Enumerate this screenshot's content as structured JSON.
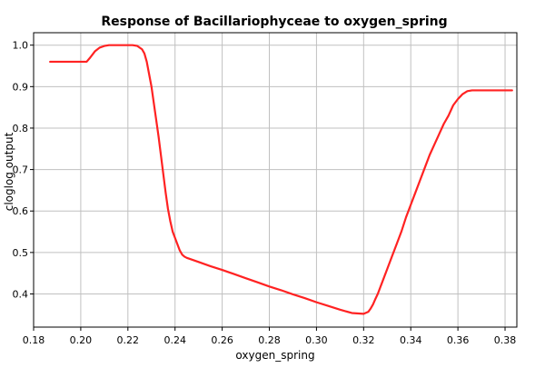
{
  "chart_data": {
    "type": "line",
    "title": "Response of Bacillariophyceae to oxygen_spring",
    "xlabel": "oxygen_spring",
    "ylabel": "cloglog output",
    "xlim": [
      0.18,
      0.385
    ],
    "ylim": [
      0.32,
      1.03
    ],
    "xticks": [
      "0.18",
      "0.20",
      "0.22",
      "0.24",
      "0.26",
      "0.28",
      "0.30",
      "0.32",
      "0.34",
      "0.36",
      "0.38"
    ],
    "yticks": [
      "0.4",
      "0.5",
      "0.6",
      "0.7",
      "0.8",
      "0.9",
      "1.0"
    ],
    "grid": true,
    "series": [
      {
        "color": "#ff2222",
        "x": [
          0.187,
          0.192,
          0.197,
          0.2025,
          0.204,
          0.206,
          0.208,
          0.21,
          0.212,
          0.214,
          0.216,
          0.218,
          0.22,
          0.222,
          0.224,
          0.226,
          0.227,
          0.228,
          0.229,
          0.23,
          0.231,
          0.232,
          0.233,
          0.234,
          0.235,
          0.236,
          0.237,
          0.238,
          0.239,
          0.24,
          0.241,
          0.242,
          0.243,
          0.244,
          0.245,
          0.246,
          0.25,
          0.255,
          0.26,
          0.265,
          0.27,
          0.275,
          0.28,
          0.285,
          0.29,
          0.295,
          0.3,
          0.305,
          0.31,
          0.315,
          0.32,
          0.322,
          0.323,
          0.324,
          0.325,
          0.326,
          0.327,
          0.328,
          0.33,
          0.332,
          0.334,
          0.336,
          0.338,
          0.34,
          0.342,
          0.344,
          0.346,
          0.348,
          0.35,
          0.352,
          0.354,
          0.356,
          0.358,
          0.36,
          0.362,
          0.364,
          0.366,
          0.367,
          0.37,
          0.375,
          0.38,
          0.383
        ],
        "values": [
          0.96,
          0.96,
          0.96,
          0.96,
          0.97,
          0.985,
          0.994,
          0.998,
          1.0,
          1.0,
          1.0,
          1.0,
          1.0,
          1.0,
          0.998,
          0.99,
          0.98,
          0.96,
          0.93,
          0.9,
          0.86,
          0.82,
          0.78,
          0.735,
          0.69,
          0.645,
          0.605,
          0.575,
          0.55,
          0.535,
          0.52,
          0.505,
          0.495,
          0.49,
          0.487,
          0.485,
          0.477,
          0.467,
          0.458,
          0.448,
          0.438,
          0.428,
          0.418,
          0.409,
          0.399,
          0.39,
          0.38,
          0.371,
          0.362,
          0.354,
          0.352,
          0.357,
          0.365,
          0.375,
          0.388,
          0.4,
          0.415,
          0.43,
          0.46,
          0.49,
          0.52,
          0.55,
          0.585,
          0.615,
          0.645,
          0.675,
          0.705,
          0.735,
          0.76,
          0.785,
          0.81,
          0.83,
          0.855,
          0.87,
          0.882,
          0.889,
          0.891,
          0.891,
          0.891,
          0.891,
          0.891,
          0.891
        ]
      }
    ]
  }
}
